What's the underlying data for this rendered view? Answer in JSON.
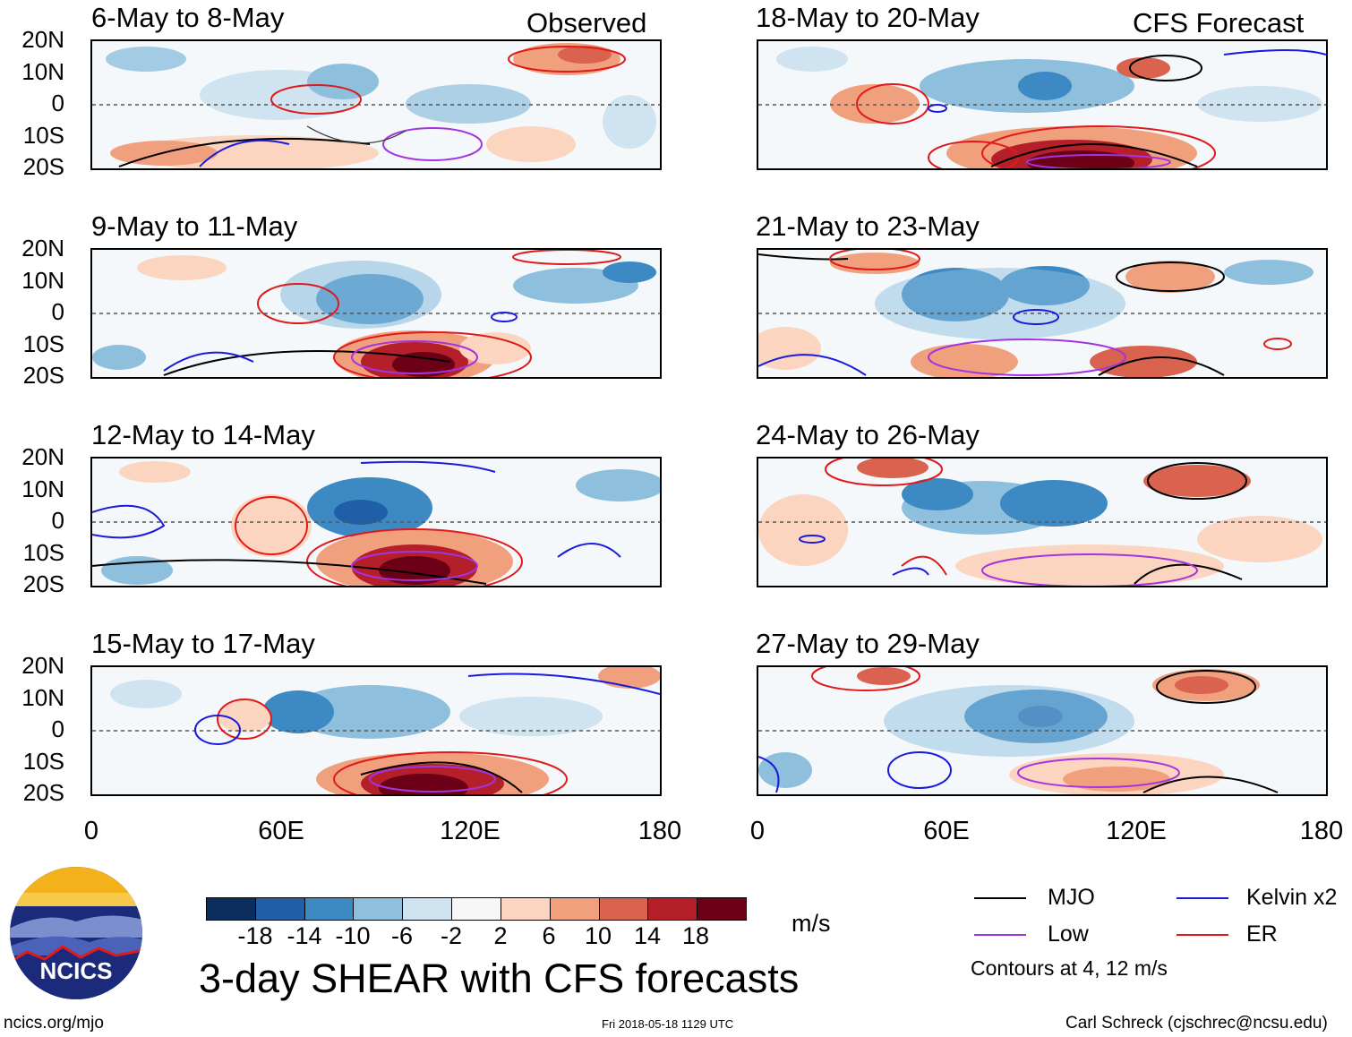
{
  "headers": {
    "left": "Observed",
    "right": "CFS Forecast"
  },
  "panels": [
    {
      "title": "6-May to 8-May"
    },
    {
      "title": "9-May to 11-May"
    },
    {
      "title": "12-May to 14-May"
    },
    {
      "title": "15-May to 17-May"
    },
    {
      "title": "18-May to 20-May"
    },
    {
      "title": "21-May to 23-May"
    },
    {
      "title": "24-May to 26-May"
    },
    {
      "title": "27-May to 29-May"
    }
  ],
  "lat_labels": [
    "20N",
    "10N",
    "0",
    "10S",
    "20S"
  ],
  "lon_labels": [
    "0",
    "60E",
    "120E",
    "180"
  ],
  "colorbar": {
    "colors": [
      "#0b2e5e",
      "#1f5fa8",
      "#3d89c3",
      "#8ebfdd",
      "#cfe3f0",
      "#f7f7f7",
      "#fbd5c0",
      "#f1a07e",
      "#d9634f",
      "#b41f2a",
      "#6b0016"
    ],
    "ticks": [
      "-18",
      "-14",
      "-10",
      "-6",
      "-2",
      "2",
      "6",
      "10",
      "14",
      "18"
    ],
    "unit": "m/s"
  },
  "main_title": "3-day SHEAR with CFS forecasts",
  "legend": {
    "items": [
      {
        "label": "MJO",
        "color": "#000000"
      },
      {
        "label": "Kelvin x2",
        "color": "#1a1adc"
      },
      {
        "label": "Low",
        "color": "#a433e0"
      },
      {
        "label": "ER",
        "color": "#e01a1a"
      }
    ],
    "note": "Contours at 4, 12 m/s"
  },
  "logo": {
    "text": "NCICS"
  },
  "footer": {
    "left": "ncics.org/mjo",
    "center": "Fri 2018-05-18 1129 UTC",
    "right": "Carl Schreck (cjschrec@ncsu.edu)"
  }
}
